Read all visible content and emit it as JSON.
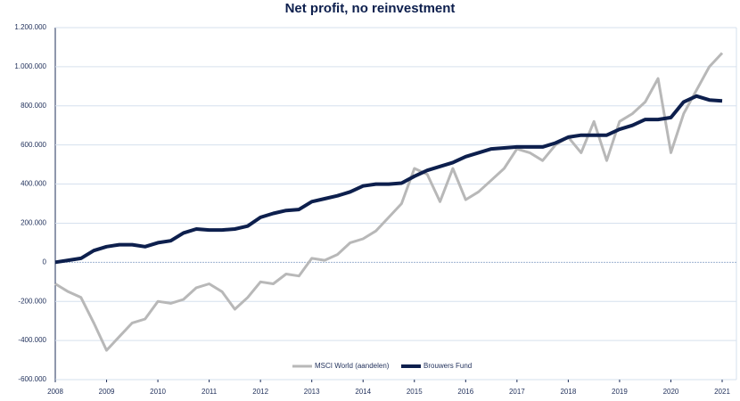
{
  "chart_data": {
    "type": "line",
    "title": "Net profit, no reinvestment",
    "x": [
      2008,
      2008.25,
      2008.5,
      2008.75,
      2009,
      2009.25,
      2009.5,
      2009.75,
      2010,
      2010.25,
      2010.5,
      2010.75,
      2011,
      2011.25,
      2011.5,
      2011.75,
      2012,
      2012.25,
      2012.5,
      2012.75,
      2013,
      2013.25,
      2013.5,
      2013.75,
      2014,
      2014.25,
      2014.5,
      2014.75,
      2015,
      2015.25,
      2015.5,
      2015.75,
      2016,
      2016.25,
      2016.5,
      2016.75,
      2017,
      2017.25,
      2017.5,
      2017.75,
      2018,
      2018.25,
      2018.5,
      2018.75,
      2019,
      2019.25,
      2019.5,
      2019.75,
      2020,
      2020.25,
      2020.5,
      2020.75,
      2021
    ],
    "series": [
      {
        "name": "MSCI World (aandelen)",
        "color": "#b8b8b8",
        "values": [
          -110000,
          -150000,
          -180000,
          -310000,
          -450000,
          -380000,
          -310000,
          -290000,
          -200000,
          -210000,
          -190000,
          -130000,
          -110000,
          -150000,
          -240000,
          -180000,
          -100000,
          -110000,
          -60000,
          -70000,
          20000,
          10000,
          40000,
          100000,
          120000,
          160000,
          230000,
          300000,
          480000,
          450000,
          310000,
          480000,
          320000,
          360000,
          420000,
          480000,
          580000,
          560000,
          520000,
          600000,
          640000,
          560000,
          720000,
          520000,
          720000,
          760000,
          820000,
          940000,
          560000,
          760000,
          880000,
          1000000,
          1070000
        ]
      },
      {
        "name": "Brouwers Fund",
        "color": "#0d1f4d",
        "values": [
          0,
          10000,
          20000,
          60000,
          80000,
          90000,
          90000,
          80000,
          100000,
          110000,
          150000,
          170000,
          165000,
          165000,
          170000,
          185000,
          230000,
          250000,
          265000,
          270000,
          310000,
          325000,
          340000,
          360000,
          390000,
          400000,
          400000,
          405000,
          440000,
          470000,
          490000,
          510000,
          540000,
          560000,
          580000,
          585000,
          590000,
          590000,
          590000,
          610000,
          640000,
          650000,
          650000,
          650000,
          680000,
          700000,
          730000,
          730000,
          740000,
          820000,
          850000,
          830000,
          825000
        ]
      }
    ],
    "xlim": [
      2008,
      2021
    ],
    "xticks": [
      2008,
      2009,
      2010,
      2011,
      2012,
      2013,
      2014,
      2015,
      2016,
      2017,
      2018,
      2019,
      2020,
      2021
    ],
    "ylim": [
      -600000,
      1200000
    ],
    "yticks": [
      {
        "value": -600000,
        "label": "-600.000"
      },
      {
        "value": -400000,
        "label": "-400.000"
      },
      {
        "value": -200000,
        "label": "-200.000"
      },
      0,
      {
        "value": 200000,
        "label": "200.000"
      },
      {
        "value": 400000,
        "label": "400.000"
      },
      {
        "value": 600000,
        "label": "600.000"
      },
      {
        "value": 800000,
        "label": "800.000"
      },
      {
        "value": 1000000,
        "label": "1.000.000"
      },
      {
        "value": 1200000,
        "label": "1.200.000"
      }
    ],
    "grid": true,
    "legend": "bottom"
  }
}
